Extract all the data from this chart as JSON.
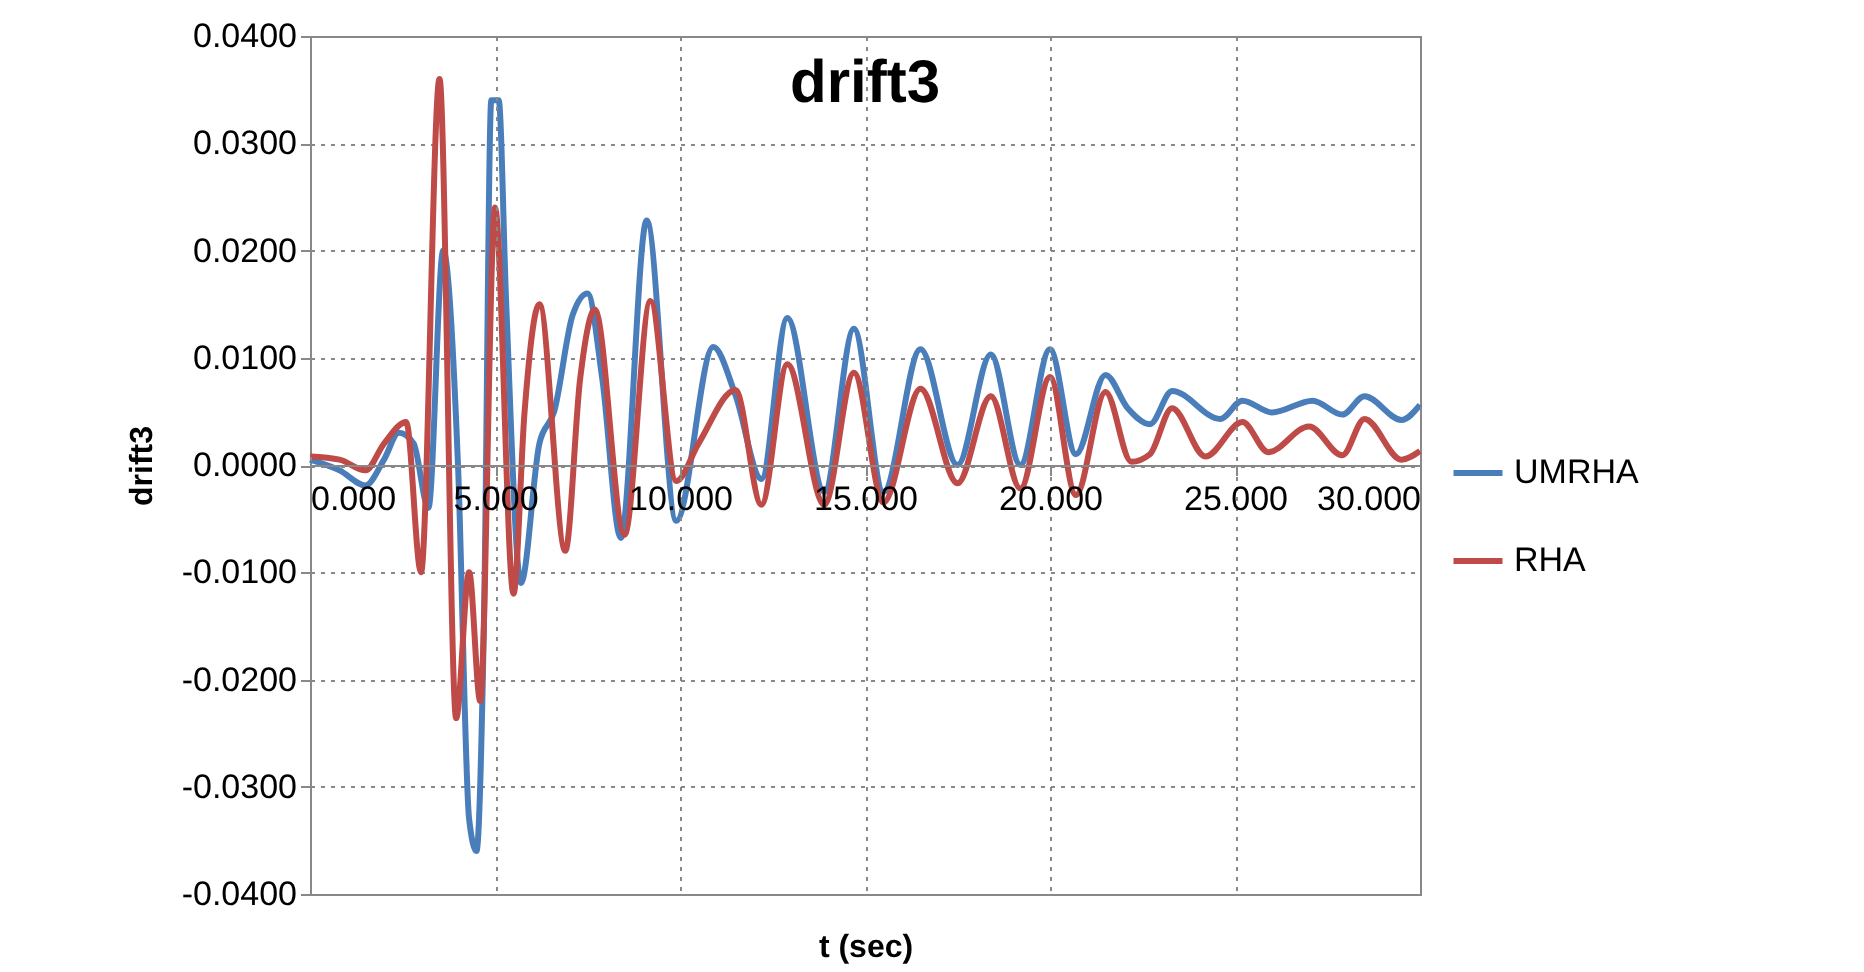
{
  "chart_data": {
    "type": "line",
    "title": "drift3",
    "xlabel": "t (sec)",
    "ylabel": "drift3",
    "xlim": [
      0,
      30
    ],
    "ylim": [
      -0.04,
      0.04
    ],
    "xticks": [
      {
        "value": 0,
        "label": "0.000"
      },
      {
        "value": 5,
        "label": "5.000"
      },
      {
        "value": 10,
        "label": "10.000"
      },
      {
        "value": 15,
        "label": "15.000"
      },
      {
        "value": 20,
        "label": "20.000"
      },
      {
        "value": 25,
        "label": "25.000"
      },
      {
        "value": 30,
        "label": "30.000"
      }
    ],
    "yticks": [
      {
        "value": -0.04,
        "label": "-0.0400"
      },
      {
        "value": -0.03,
        "label": "-0.0300"
      },
      {
        "value": -0.02,
        "label": "-0.0200"
      },
      {
        "value": -0.01,
        "label": "-0.0100"
      },
      {
        "value": 0,
        "label": "0.0000"
      },
      {
        "value": 0.01,
        "label": "0.0100"
      },
      {
        "value": 0.02,
        "label": "0.0200"
      },
      {
        "value": 0.03,
        "label": "0.0300"
      },
      {
        "value": 0.04,
        "label": "0.0400"
      }
    ],
    "grid": true,
    "legend": "right",
    "marker": "none",
    "line_style": "solid",
    "series": [
      {
        "name": "UMRHA",
        "color": "#4a7ebb",
        "x": [
          0,
          0.8,
          1.5,
          2.0,
          2.4,
          2.8,
          3.2,
          3.6,
          4.0,
          4.3,
          4.5,
          4.7,
          4.9,
          5.1,
          5.3,
          5.7,
          6.2,
          6.6,
          7.1,
          7.5,
          7.9,
          8.4,
          9.1,
          9.9,
          10.9,
          11.5,
          12.2,
          12.9,
          13.9,
          14.7,
          15.5,
          16.5,
          17.5,
          18.4,
          19.2,
          20.0,
          20.7,
          21.5,
          22.1,
          22.7,
          23.3,
          24.6,
          25.2,
          26.0,
          27.1,
          27.9,
          28.5,
          29.5,
          30
        ],
        "values": [
          0.0005,
          -0.0005,
          -0.0019,
          0.0005,
          0.003,
          0.002,
          -0.004,
          0.02,
          0.0,
          -0.033,
          -0.036,
          -0.015,
          0.034,
          0.034,
          0.0153,
          -0.011,
          0.002,
          0.005,
          0.014,
          0.016,
          0.008,
          -0.0068,
          0.0228,
          -0.0052,
          0.011,
          0.0065,
          -0.0013,
          0.0137,
          -0.0025,
          0.0127,
          -0.0025,
          0.0108,
          0.0,
          0.0103,
          0.0,
          0.0108,
          0.001,
          0.0084,
          0.0053,
          0.0038,
          0.0069,
          0.0043,
          0.006,
          0.0049,
          0.006,
          0.0047,
          0.0064,
          0.0042,
          0.0056
        ]
      },
      {
        "name": "RHA",
        "color": "#be4b48",
        "x": [
          0,
          0.8,
          1.5,
          2.0,
          2.6,
          3.0,
          3.5,
          3.95,
          4.3,
          4.6,
          5.0,
          5.5,
          5.8,
          6.2,
          6.9,
          7.3,
          7.7,
          8.5,
          9.2,
          9.9,
          10.5,
          11.5,
          12.2,
          12.9,
          13.9,
          14.7,
          15.5,
          16.5,
          17.5,
          18.4,
          19.2,
          20.0,
          20.7,
          21.5,
          22.2,
          22.7,
          23.3,
          24.2,
          25.2,
          25.9,
          27.0,
          27.9,
          28.5,
          29.5,
          30
        ],
        "values": [
          0.0008,
          0.0005,
          -0.0005,
          0.002,
          0.004,
          -0.01,
          0.036,
          -0.0236,
          -0.01,
          -0.022,
          0.024,
          -0.012,
          0.005,
          0.015,
          -0.008,
          0.008,
          0.0145,
          -0.0065,
          0.0153,
          -0.0015,
          0.002,
          0.007,
          -0.0037,
          0.0094,
          -0.0037,
          0.0086,
          -0.0035,
          0.0071,
          -0.0017,
          0.0064,
          -0.0022,
          0.0082,
          -0.0028,
          0.0068,
          0.0003,
          0.001,
          0.0053,
          0.0008,
          0.004,
          0.0012,
          0.0036,
          0.0009,
          0.0043,
          0.0005,
          0.0013
        ]
      }
    ]
  }
}
